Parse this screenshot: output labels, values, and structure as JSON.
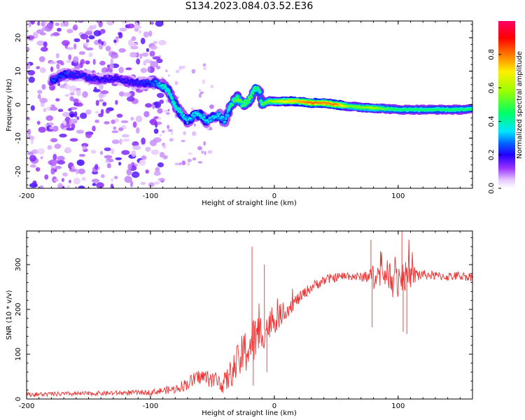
{
  "figure_title": "S134.2023.084.03.52.E36",
  "colors": {
    "snr_line": "#ee3333",
    "colormap": [
      "#ffffff",
      "#e6c9ff",
      "#b366ff",
      "#7a00ff",
      "#2200ff",
      "#0066ff",
      "#00e5ff",
      "#00ff66",
      "#99ff00",
      "#ffee00",
      "#ff7700",
      "#ff0000",
      "#ff0066"
    ]
  },
  "chart_data": [
    {
      "type": "heatmap",
      "title": "",
      "xlabel": "Height of straight line (km)",
      "ylabel": "Frequency (Hz)",
      "xlim": [
        -200,
        160
      ],
      "ylim": [
        -25,
        25
      ],
      "x_ticks": [
        "-200",
        "-100",
        "0",
        "100"
      ],
      "y_ticks": [
        "-20",
        "-10",
        "0",
        "10",
        "20"
      ],
      "colorbar": {
        "label": "Normalized spectral amplitude",
        "range": [
          0,
          1
        ],
        "ticks": [
          "0.0",
          "0.2",
          "0.4",
          "0.6",
          "0.8"
        ]
      },
      "ridge": {
        "x": [
          -180,
          -170,
          -160,
          -150,
          -140,
          -130,
          -120,
          -110,
          -100,
          -95,
          -90,
          -85,
          -80,
          -75,
          -70,
          -65,
          -60,
          -55,
          -50,
          -45,
          -40,
          -35,
          -30,
          -25,
          -20,
          -15,
          -12,
          -10,
          -5,
          0,
          10,
          20,
          30,
          40,
          50,
          60,
          70,
          80,
          90,
          100,
          110,
          120,
          130,
          140,
          150,
          160
        ],
        "y": [
          7,
          9,
          9,
          8,
          7.5,
          8,
          7,
          6.5,
          6.5,
          6.5,
          5.5,
          4,
          0,
          -3,
          -5,
          -3,
          -3,
          -5,
          -4,
          -3,
          -5,
          0,
          2,
          0,
          1.5,
          5,
          4,
          0,
          1,
          1,
          1,
          1,
          0.5,
          0.5,
          0,
          -0.5,
          -0.8,
          -1,
          -1.2,
          -1.5,
          -1.5,
          -1.5,
          -1.5,
          -1.5,
          -1.5,
          -1.3
        ],
        "amplitude": [
          0.25,
          0.25,
          0.22,
          0.22,
          0.2,
          0.2,
          0.2,
          0.22,
          0.25,
          0.3,
          0.4,
          0.42,
          0.42,
          0.4,
          0.35,
          0.35,
          0.38,
          0.35,
          0.35,
          0.35,
          0.35,
          0.45,
          0.55,
          0.5,
          0.55,
          0.45,
          0.45,
          0.5,
          0.55,
          0.6,
          0.7,
          0.75,
          0.82,
          0.78,
          0.8,
          0.55,
          0.55,
          0.6,
          0.5,
          0.45,
          0.45,
          0.45,
          0.45,
          0.45,
          0.45,
          0.45
        ]
      },
      "noise_region_x": [
        -200,
        -90
      ]
    },
    {
      "type": "line",
      "title": "",
      "xlabel": "Height of straight line (km)",
      "ylabel": "SNR (10 * v/v)",
      "xlim": [
        -200,
        160
      ],
      "ylim": [
        0,
        375
      ],
      "x_ticks": [
        "-200",
        "-100",
        "0",
        "100"
      ],
      "y_ticks": [
        "0",
        "100",
        "200",
        "300"
      ],
      "series": [
        {
          "x": [
            -200,
            -150,
            -100,
            -80,
            -70,
            -60,
            -50,
            -40,
            -30,
            -20,
            -10,
            0,
            10,
            20,
            30,
            40,
            50,
            60,
            70,
            80,
            90,
            100,
            110,
            120,
            130,
            140,
            150,
            160
          ],
          "y": [
            10,
            12,
            15,
            22,
            35,
            50,
            45,
            35,
            80,
            120,
            150,
            175,
            200,
            225,
            250,
            265,
            272,
            275,
            272,
            278,
            280,
            272,
            275,
            278,
            275,
            273,
            275,
            272
          ],
          "noise_amplitude": [
            5,
            5,
            6,
            10,
            15,
            18,
            20,
            25,
            40,
            60,
            45,
            30,
            20,
            14,
            12,
            12,
            10,
            10,
            10,
            22,
            30,
            40,
            28,
            10,
            10,
            10,
            10,
            10
          ]
        }
      ]
    }
  ]
}
